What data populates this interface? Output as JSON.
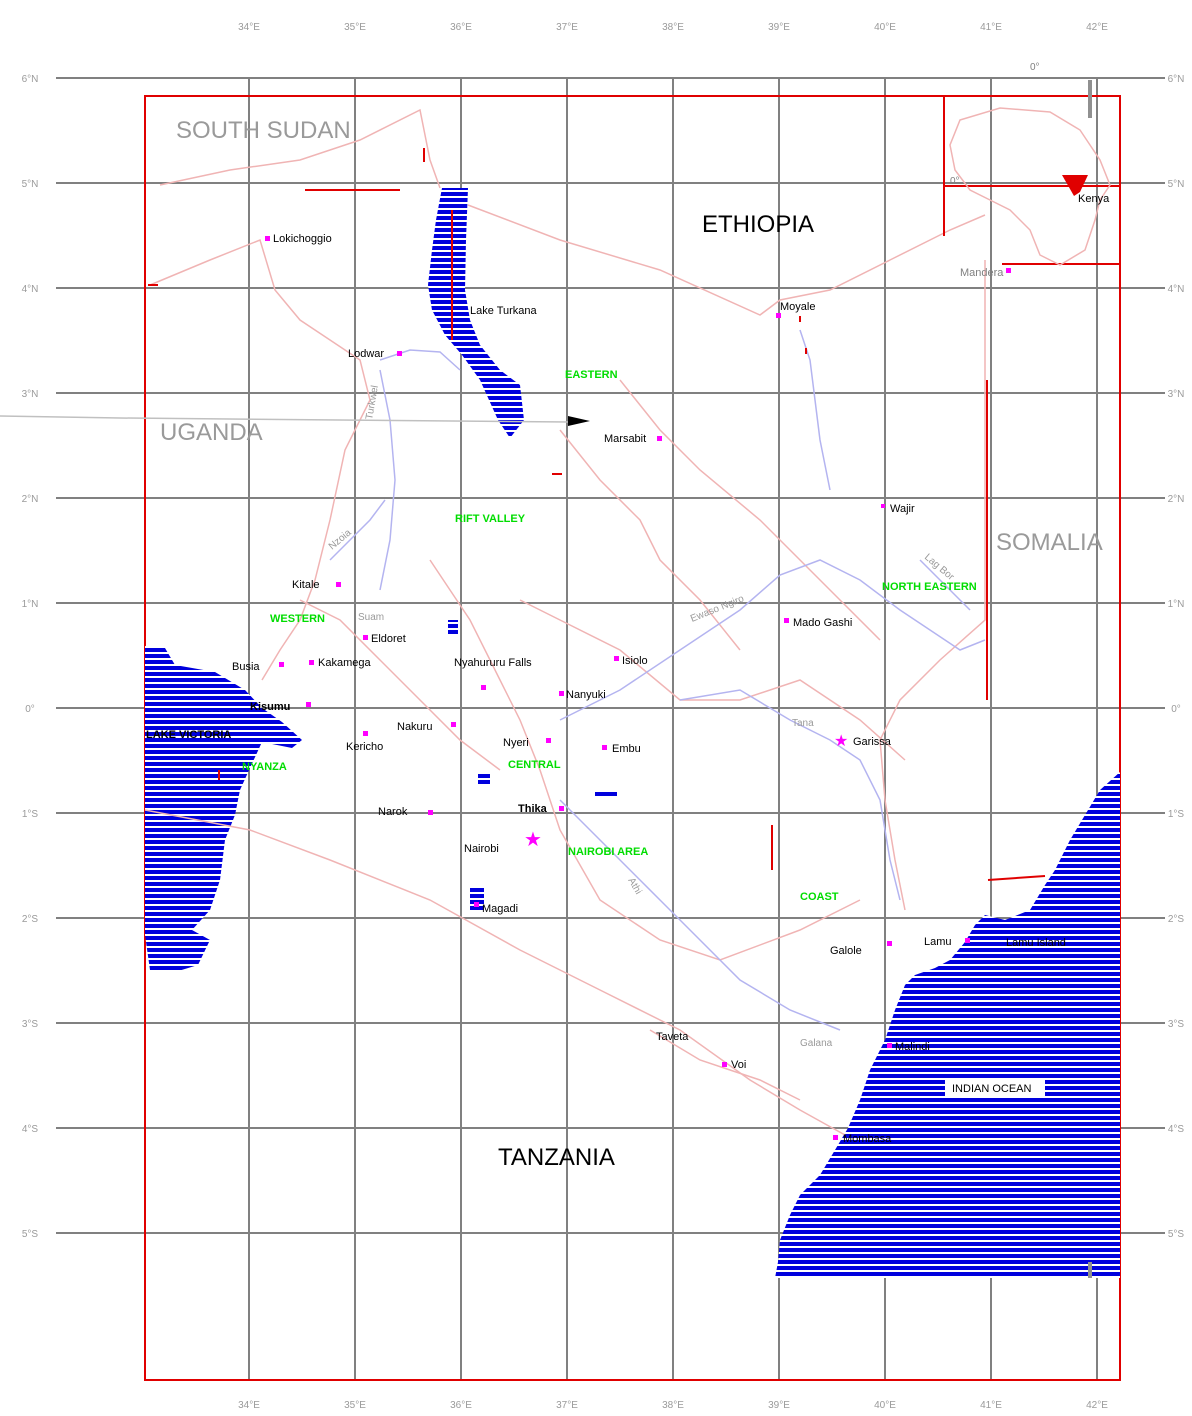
{
  "map": {
    "lon_labels": [
      "34°E",
      "35°E",
      "36°E",
      "37°E",
      "38°E",
      "39°E",
      "40°E",
      "41°E",
      "42°E"
    ],
    "lat_labels": [
      "6°N",
      "5°N",
      "4°N",
      "3°N",
      "2°N",
      "1°N",
      "0°",
      "1°S",
      "2°S",
      "3°S",
      "4°S",
      "5°S"
    ],
    "countries": {
      "south_sudan": "SOUTH SUDAN",
      "ethiopia": "ETHIOPIA",
      "uganda": "UGANDA",
      "somalia": "SOMALIA",
      "tanzania": "TANZANIA"
    },
    "water": {
      "lake_turkana": "Lake Turkana",
      "lake_victoria": "LAKE VICTORIA",
      "indian_ocean": "INDIAN OCEAN",
      "lamu_island": "Lamu Island"
    },
    "provinces": {
      "eastern": "EASTERN",
      "rift_valley": "RIFT VALLEY",
      "western": "WESTERN",
      "nyanza": "NYANZA",
      "central": "CENTRAL",
      "nairobi_area": "NAIROBI AREA",
      "north_eastern": "NORTH EASTERN",
      "coast": "COAST"
    },
    "towns": {
      "lokichoggio": "Lokichoggio",
      "lodwar": "Lodwar",
      "moyale": "Moyale",
      "mandera": "Mandera",
      "marsabit": "Marsabit",
      "wajir": "Wajir",
      "kitale": "Kitale",
      "eldoret": "Eldoret",
      "busia": "Busia",
      "kakamega": "Kakamega",
      "kisumu": "Kisumu",
      "kericho": "Kericho",
      "nakuru": "Nakuru",
      "nyahururu_falls": "Nyahururu Falls",
      "nanyuki": "Nanyuki",
      "isiolo": "Isiolo",
      "nyeri": "Nyeri",
      "embu": "Embu",
      "thika": "Thika",
      "narok": "Narok",
      "nairobi": "Nairobi",
      "magadi": "Magadi",
      "mado_gashi": "Mado Gashi",
      "garissa": "Garissa",
      "lamu": "Lamu",
      "galole": "Galole",
      "malindi": "Malindi",
      "voi": "Voi",
      "taveta": "Taveta",
      "mombasa": "Mombasa",
      "kenya_inset": "Kenya"
    },
    "rivers": {
      "ewaso_ngiro": "Ewaso Ngiro",
      "tana": "Tana",
      "galana": "Galana",
      "lag_bor": "Lag Bor",
      "athi": "Athi",
      "turkwel": "Turkwel",
      "nzoia": "Nzoia",
      "suam": "Suam"
    },
    "inset": {
      "equator_label": "0°",
      "lat_label": "0°"
    },
    "colors": {
      "grid": "#808080",
      "frame": "#e00000",
      "water": "#0000dd",
      "border": "#f0b4b4",
      "river": "#b4b4f0",
      "town": "#ff00ff",
      "province": "#00dd00",
      "country": "#9a9a9a"
    }
  }
}
